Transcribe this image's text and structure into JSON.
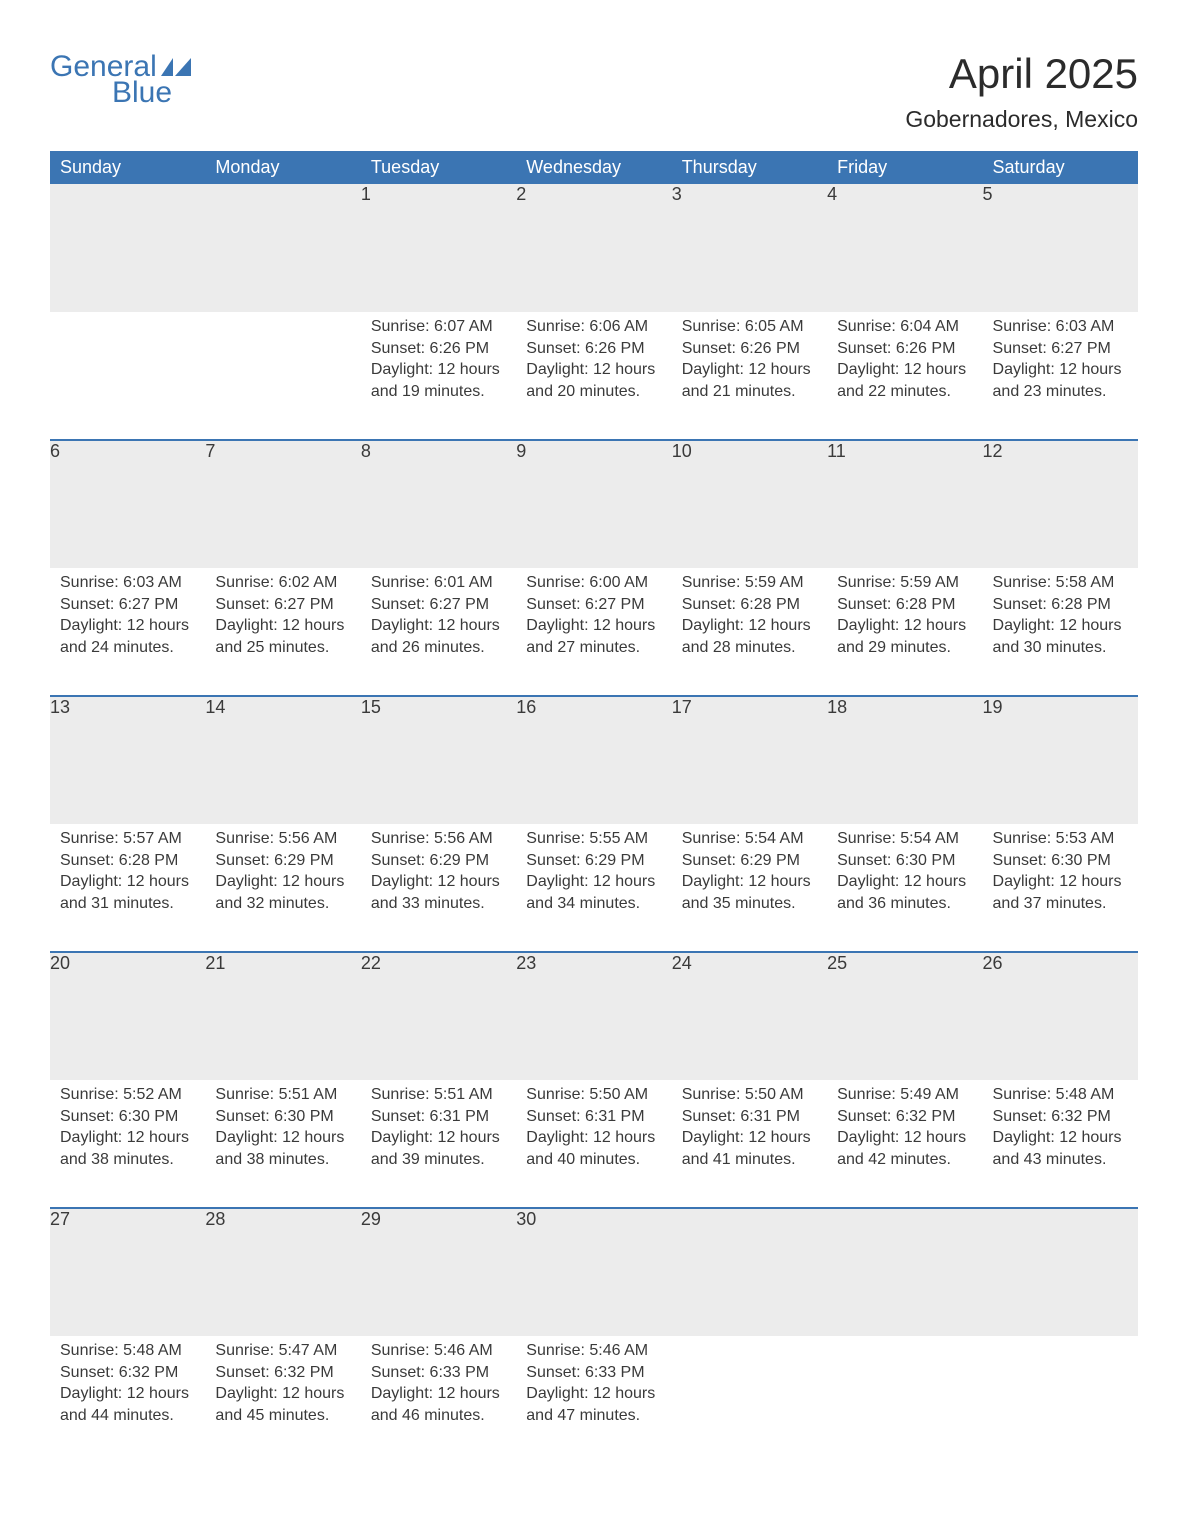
{
  "logo": {
    "text_general": "General",
    "text_blue": "Blue",
    "brand_color": "#3b75b3"
  },
  "title": "April 2025",
  "location": "Gobernadores, Mexico",
  "colors": {
    "header_bg": "#3b75b3",
    "header_text": "#ffffff",
    "daynum_bg": "#ececec",
    "border_top": "#3b75b3",
    "text": "#3a3a3a",
    "page_bg": "#ffffff"
  },
  "day_headers": [
    "Sunday",
    "Monday",
    "Tuesday",
    "Wednesday",
    "Thursday",
    "Friday",
    "Saturday"
  ],
  "weeks": [
    [
      null,
      null,
      {
        "n": "1",
        "sr": "Sunrise: 6:07 AM",
        "ss": "Sunset: 6:26 PM",
        "d1": "Daylight: 12 hours",
        "d2": "and 19 minutes."
      },
      {
        "n": "2",
        "sr": "Sunrise: 6:06 AM",
        "ss": "Sunset: 6:26 PM",
        "d1": "Daylight: 12 hours",
        "d2": "and 20 minutes."
      },
      {
        "n": "3",
        "sr": "Sunrise: 6:05 AM",
        "ss": "Sunset: 6:26 PM",
        "d1": "Daylight: 12 hours",
        "d2": "and 21 minutes."
      },
      {
        "n": "4",
        "sr": "Sunrise: 6:04 AM",
        "ss": "Sunset: 6:26 PM",
        "d1": "Daylight: 12 hours",
        "d2": "and 22 minutes."
      },
      {
        "n": "5",
        "sr": "Sunrise: 6:03 AM",
        "ss": "Sunset: 6:27 PM",
        "d1": "Daylight: 12 hours",
        "d2": "and 23 minutes."
      }
    ],
    [
      {
        "n": "6",
        "sr": "Sunrise: 6:03 AM",
        "ss": "Sunset: 6:27 PM",
        "d1": "Daylight: 12 hours",
        "d2": "and 24 minutes."
      },
      {
        "n": "7",
        "sr": "Sunrise: 6:02 AM",
        "ss": "Sunset: 6:27 PM",
        "d1": "Daylight: 12 hours",
        "d2": "and 25 minutes."
      },
      {
        "n": "8",
        "sr": "Sunrise: 6:01 AM",
        "ss": "Sunset: 6:27 PM",
        "d1": "Daylight: 12 hours",
        "d2": "and 26 minutes."
      },
      {
        "n": "9",
        "sr": "Sunrise: 6:00 AM",
        "ss": "Sunset: 6:27 PM",
        "d1": "Daylight: 12 hours",
        "d2": "and 27 minutes."
      },
      {
        "n": "10",
        "sr": "Sunrise: 5:59 AM",
        "ss": "Sunset: 6:28 PM",
        "d1": "Daylight: 12 hours",
        "d2": "and 28 minutes."
      },
      {
        "n": "11",
        "sr": "Sunrise: 5:59 AM",
        "ss": "Sunset: 6:28 PM",
        "d1": "Daylight: 12 hours",
        "d2": "and 29 minutes."
      },
      {
        "n": "12",
        "sr": "Sunrise: 5:58 AM",
        "ss": "Sunset: 6:28 PM",
        "d1": "Daylight: 12 hours",
        "d2": "and 30 minutes."
      }
    ],
    [
      {
        "n": "13",
        "sr": "Sunrise: 5:57 AM",
        "ss": "Sunset: 6:28 PM",
        "d1": "Daylight: 12 hours",
        "d2": "and 31 minutes."
      },
      {
        "n": "14",
        "sr": "Sunrise: 5:56 AM",
        "ss": "Sunset: 6:29 PM",
        "d1": "Daylight: 12 hours",
        "d2": "and 32 minutes."
      },
      {
        "n": "15",
        "sr": "Sunrise: 5:56 AM",
        "ss": "Sunset: 6:29 PM",
        "d1": "Daylight: 12 hours",
        "d2": "and 33 minutes."
      },
      {
        "n": "16",
        "sr": "Sunrise: 5:55 AM",
        "ss": "Sunset: 6:29 PM",
        "d1": "Daylight: 12 hours",
        "d2": "and 34 minutes."
      },
      {
        "n": "17",
        "sr": "Sunrise: 5:54 AM",
        "ss": "Sunset: 6:29 PM",
        "d1": "Daylight: 12 hours",
        "d2": "and 35 minutes."
      },
      {
        "n": "18",
        "sr": "Sunrise: 5:54 AM",
        "ss": "Sunset: 6:30 PM",
        "d1": "Daylight: 12 hours",
        "d2": "and 36 minutes."
      },
      {
        "n": "19",
        "sr": "Sunrise: 5:53 AM",
        "ss": "Sunset: 6:30 PM",
        "d1": "Daylight: 12 hours",
        "d2": "and 37 minutes."
      }
    ],
    [
      {
        "n": "20",
        "sr": "Sunrise: 5:52 AM",
        "ss": "Sunset: 6:30 PM",
        "d1": "Daylight: 12 hours",
        "d2": "and 38 minutes."
      },
      {
        "n": "21",
        "sr": "Sunrise: 5:51 AM",
        "ss": "Sunset: 6:30 PM",
        "d1": "Daylight: 12 hours",
        "d2": "and 38 minutes."
      },
      {
        "n": "22",
        "sr": "Sunrise: 5:51 AM",
        "ss": "Sunset: 6:31 PM",
        "d1": "Daylight: 12 hours",
        "d2": "and 39 minutes."
      },
      {
        "n": "23",
        "sr": "Sunrise: 5:50 AM",
        "ss": "Sunset: 6:31 PM",
        "d1": "Daylight: 12 hours",
        "d2": "and 40 minutes."
      },
      {
        "n": "24",
        "sr": "Sunrise: 5:50 AM",
        "ss": "Sunset: 6:31 PM",
        "d1": "Daylight: 12 hours",
        "d2": "and 41 minutes."
      },
      {
        "n": "25",
        "sr": "Sunrise: 5:49 AM",
        "ss": "Sunset: 6:32 PM",
        "d1": "Daylight: 12 hours",
        "d2": "and 42 minutes."
      },
      {
        "n": "26",
        "sr": "Sunrise: 5:48 AM",
        "ss": "Sunset: 6:32 PM",
        "d1": "Daylight: 12 hours",
        "d2": "and 43 minutes."
      }
    ],
    [
      {
        "n": "27",
        "sr": "Sunrise: 5:48 AM",
        "ss": "Sunset: 6:32 PM",
        "d1": "Daylight: 12 hours",
        "d2": "and 44 minutes."
      },
      {
        "n": "28",
        "sr": "Sunrise: 5:47 AM",
        "ss": "Sunset: 6:32 PM",
        "d1": "Daylight: 12 hours",
        "d2": "and 45 minutes."
      },
      {
        "n": "29",
        "sr": "Sunrise: 5:46 AM",
        "ss": "Sunset: 6:33 PM",
        "d1": "Daylight: 12 hours",
        "d2": "and 46 minutes."
      },
      {
        "n": "30",
        "sr": "Sunrise: 5:46 AM",
        "ss": "Sunset: 6:33 PM",
        "d1": "Daylight: 12 hours",
        "d2": "and 47 minutes."
      },
      null,
      null,
      null
    ]
  ]
}
